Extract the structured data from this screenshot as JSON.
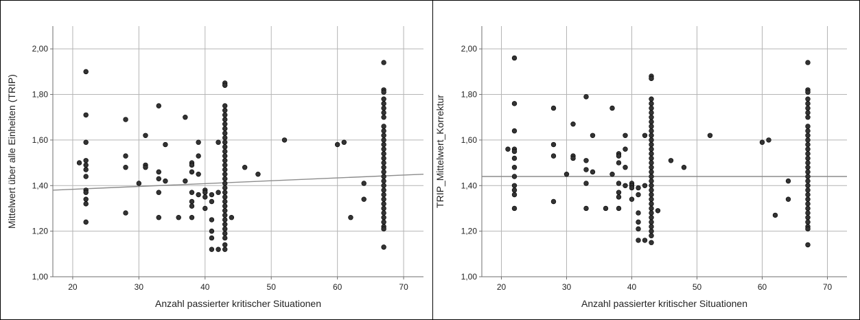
{
  "chart_data": [
    {
      "type": "scatter",
      "xlabel": "Anzahl passierter kritischer Situationen",
      "ylabel": "Mittelwert über alle Einheiten (TRIP)",
      "xlim": [
        17,
        73
      ],
      "ylim": [
        1.0,
        2.1
      ],
      "xticks": [
        "20",
        "30",
        "40",
        "50",
        "60",
        "70"
      ],
      "xtick_values": [
        20,
        30,
        40,
        50,
        60,
        70
      ],
      "yticks": [
        "1,00",
        "1,20",
        "1,40",
        "1,60",
        "1,80",
        "2,00"
      ],
      "ytick_values": [
        1.0,
        1.2,
        1.4,
        1.6,
        1.8,
        2.0
      ],
      "grid": true,
      "fit_line": [
        [
          17,
          1.38
        ],
        [
          73,
          1.45
        ]
      ],
      "points": [
        [
          21,
          1.5
        ],
        [
          22,
          1.9
        ],
        [
          22,
          1.71
        ],
        [
          22,
          1.59
        ],
        [
          22,
          1.51
        ],
        [
          22,
          1.49
        ],
        [
          22,
          1.47
        ],
        [
          22,
          1.44
        ],
        [
          22,
          1.38
        ],
        [
          22,
          1.37
        ],
        [
          22,
          1.34
        ],
        [
          22,
          1.32
        ],
        [
          22,
          1.24
        ],
        [
          28,
          1.69
        ],
        [
          28,
          1.53
        ],
        [
          28,
          1.48
        ],
        [
          28,
          1.28
        ],
        [
          30,
          1.41
        ],
        [
          31,
          1.62
        ],
        [
          31,
          1.49
        ],
        [
          31,
          1.48
        ],
        [
          33,
          1.75
        ],
        [
          33,
          1.46
        ],
        [
          33,
          1.43
        ],
        [
          33,
          1.37
        ],
        [
          33,
          1.26
        ],
        [
          34,
          1.58
        ],
        [
          34,
          1.42
        ],
        [
          36,
          1.26
        ],
        [
          37,
          1.7
        ],
        [
          37,
          1.42
        ],
        [
          38,
          1.5
        ],
        [
          38,
          1.49
        ],
        [
          38,
          1.46
        ],
        [
          38,
          1.37
        ],
        [
          38,
          1.33
        ],
        [
          38,
          1.31
        ],
        [
          38,
          1.26
        ],
        [
          39,
          1.59
        ],
        [
          39,
          1.53
        ],
        [
          39,
          1.45
        ],
        [
          39,
          1.36
        ],
        [
          40,
          1.38
        ],
        [
          40,
          1.37
        ],
        [
          40,
          1.35
        ],
        [
          40,
          1.3
        ],
        [
          41,
          1.36
        ],
        [
          41,
          1.33
        ],
        [
          41,
          1.25
        ],
        [
          41,
          1.2
        ],
        [
          41,
          1.17
        ],
        [
          41,
          1.12
        ],
        [
          42,
          1.59
        ],
        [
          42,
          1.37
        ],
        [
          42,
          1.12
        ],
        [
          43,
          1.85
        ],
        [
          43,
          1.84
        ],
        [
          43,
          1.75
        ],
        [
          43,
          1.73
        ],
        [
          43,
          1.71
        ],
        [
          43,
          1.69
        ],
        [
          43,
          1.67
        ],
        [
          43,
          1.65
        ],
        [
          43,
          1.63
        ],
        [
          43,
          1.61
        ],
        [
          43,
          1.59
        ],
        [
          43,
          1.57
        ],
        [
          43,
          1.55
        ],
        [
          43,
          1.53
        ],
        [
          43,
          1.51
        ],
        [
          43,
          1.49
        ],
        [
          43,
          1.47
        ],
        [
          43,
          1.45
        ],
        [
          43,
          1.43
        ],
        [
          43,
          1.41
        ],
        [
          43,
          1.39
        ],
        [
          43,
          1.37
        ],
        [
          43,
          1.35
        ],
        [
          43,
          1.33
        ],
        [
          43,
          1.31
        ],
        [
          43,
          1.29
        ],
        [
          43,
          1.27
        ],
        [
          43,
          1.25
        ],
        [
          43,
          1.23
        ],
        [
          43,
          1.21
        ],
        [
          43,
          1.19
        ],
        [
          43,
          1.17
        ],
        [
          43,
          1.14
        ],
        [
          43,
          1.12
        ],
        [
          44,
          1.26
        ],
        [
          46,
          1.48
        ],
        [
          48,
          1.45
        ],
        [
          52,
          1.6
        ],
        [
          60,
          1.58
        ],
        [
          61,
          1.59
        ],
        [
          62,
          1.26
        ],
        [
          64,
          1.41
        ],
        [
          64,
          1.34
        ],
        [
          67,
          1.94
        ],
        [
          67,
          1.82
        ],
        [
          67,
          1.81
        ],
        [
          67,
          1.78
        ],
        [
          67,
          1.76
        ],
        [
          67,
          1.74
        ],
        [
          67,
          1.72
        ],
        [
          67,
          1.7
        ],
        [
          67,
          1.66
        ],
        [
          67,
          1.64
        ],
        [
          67,
          1.62
        ],
        [
          67,
          1.6
        ],
        [
          67,
          1.58
        ],
        [
          67,
          1.56
        ],
        [
          67,
          1.54
        ],
        [
          67,
          1.52
        ],
        [
          67,
          1.5
        ],
        [
          67,
          1.48
        ],
        [
          67,
          1.46
        ],
        [
          67,
          1.44
        ],
        [
          67,
          1.42
        ],
        [
          67,
          1.4
        ],
        [
          67,
          1.38
        ],
        [
          67,
          1.36
        ],
        [
          67,
          1.34
        ],
        [
          67,
          1.32
        ],
        [
          67,
          1.3
        ],
        [
          67,
          1.28
        ],
        [
          67,
          1.26
        ],
        [
          67,
          1.24
        ],
        [
          67,
          1.22
        ],
        [
          67,
          1.21
        ],
        [
          67,
          1.13
        ]
      ]
    },
    {
      "type": "scatter",
      "xlabel": "Anzahl passierter kritischer Situationen",
      "ylabel": "TRIP_Mittelwert_Korrektur",
      "xlim": [
        17,
        73
      ],
      "ylim": [
        1.0,
        2.1
      ],
      "xticks": [
        "20",
        "30",
        "40",
        "50",
        "60",
        "70"
      ],
      "xtick_values": [
        20,
        30,
        40,
        50,
        60,
        70
      ],
      "yticks": [
        "1,00",
        "1,20",
        "1,40",
        "1,60",
        "1,80",
        "2,00"
      ],
      "ytick_values": [
        1.0,
        1.2,
        1.4,
        1.6,
        1.8,
        2.0
      ],
      "grid": true,
      "fit_line": [
        [
          17,
          1.44
        ],
        [
          73,
          1.44
        ]
      ],
      "points": [
        [
          21,
          1.56
        ],
        [
          22,
          1.96
        ],
        [
          22,
          1.76
        ],
        [
          22,
          1.64
        ],
        [
          22,
          1.56
        ],
        [
          22,
          1.55
        ],
        [
          22,
          1.52
        ],
        [
          22,
          1.48
        ],
        [
          22,
          1.44
        ],
        [
          22,
          1.4
        ],
        [
          22,
          1.38
        ],
        [
          22,
          1.36
        ],
        [
          22,
          1.3
        ],
        [
          28,
          1.74
        ],
        [
          28,
          1.58
        ],
        [
          28,
          1.53
        ],
        [
          28,
          1.33
        ],
        [
          30,
          1.45
        ],
        [
          31,
          1.67
        ],
        [
          31,
          1.53
        ],
        [
          31,
          1.52
        ],
        [
          33,
          1.79
        ],
        [
          33,
          1.51
        ],
        [
          33,
          1.47
        ],
        [
          33,
          1.41
        ],
        [
          33,
          1.3
        ],
        [
          34,
          1.62
        ],
        [
          34,
          1.46
        ],
        [
          36,
          1.3
        ],
        [
          37,
          1.74
        ],
        [
          37,
          1.45
        ],
        [
          38,
          1.54
        ],
        [
          38,
          1.53
        ],
        [
          38,
          1.5
        ],
        [
          38,
          1.41
        ],
        [
          38,
          1.37
        ],
        [
          38,
          1.35
        ],
        [
          38,
          1.3
        ],
        [
          39,
          1.62
        ],
        [
          39,
          1.56
        ],
        [
          39,
          1.48
        ],
        [
          39,
          1.4
        ],
        [
          40,
          1.41
        ],
        [
          40,
          1.4
        ],
        [
          40,
          1.39
        ],
        [
          40,
          1.34
        ],
        [
          41,
          1.39
        ],
        [
          41,
          1.36
        ],
        [
          41,
          1.28
        ],
        [
          41,
          1.24
        ],
        [
          41,
          1.21
        ],
        [
          41,
          1.16
        ],
        [
          42,
          1.62
        ],
        [
          42,
          1.4
        ],
        [
          42,
          1.16
        ],
        [
          43,
          1.88
        ],
        [
          43,
          1.87
        ],
        [
          43,
          1.78
        ],
        [
          43,
          1.76
        ],
        [
          43,
          1.74
        ],
        [
          43,
          1.72
        ],
        [
          43,
          1.7
        ],
        [
          43,
          1.68
        ],
        [
          43,
          1.66
        ],
        [
          43,
          1.64
        ],
        [
          43,
          1.62
        ],
        [
          43,
          1.6
        ],
        [
          43,
          1.58
        ],
        [
          43,
          1.56
        ],
        [
          43,
          1.54
        ],
        [
          43,
          1.52
        ],
        [
          43,
          1.5
        ],
        [
          43,
          1.48
        ],
        [
          43,
          1.46
        ],
        [
          43,
          1.44
        ],
        [
          43,
          1.42
        ],
        [
          43,
          1.4
        ],
        [
          43,
          1.38
        ],
        [
          43,
          1.36
        ],
        [
          43,
          1.34
        ],
        [
          43,
          1.32
        ],
        [
          43,
          1.3
        ],
        [
          43,
          1.28
        ],
        [
          43,
          1.26
        ],
        [
          43,
          1.24
        ],
        [
          43,
          1.22
        ],
        [
          43,
          1.2
        ],
        [
          43,
          1.18
        ],
        [
          43,
          1.15
        ],
        [
          44,
          1.29
        ],
        [
          46,
          1.51
        ],
        [
          48,
          1.48
        ],
        [
          52,
          1.62
        ],
        [
          60,
          1.59
        ],
        [
          61,
          1.6
        ],
        [
          62,
          1.27
        ],
        [
          64,
          1.42
        ],
        [
          64,
          1.34
        ],
        [
          67,
          1.94
        ],
        [
          67,
          1.82
        ],
        [
          67,
          1.81
        ],
        [
          67,
          1.78
        ],
        [
          67,
          1.76
        ],
        [
          67,
          1.74
        ],
        [
          67,
          1.72
        ],
        [
          67,
          1.7
        ],
        [
          67,
          1.66
        ],
        [
          67,
          1.64
        ],
        [
          67,
          1.62
        ],
        [
          67,
          1.6
        ],
        [
          67,
          1.58
        ],
        [
          67,
          1.56
        ],
        [
          67,
          1.54
        ],
        [
          67,
          1.52
        ],
        [
          67,
          1.5
        ],
        [
          67,
          1.48
        ],
        [
          67,
          1.46
        ],
        [
          67,
          1.44
        ],
        [
          67,
          1.42
        ],
        [
          67,
          1.4
        ],
        [
          67,
          1.38
        ],
        [
          67,
          1.36
        ],
        [
          67,
          1.34
        ],
        [
          67,
          1.32
        ],
        [
          67,
          1.3
        ],
        [
          67,
          1.28
        ],
        [
          67,
          1.26
        ],
        [
          67,
          1.24
        ],
        [
          67,
          1.22
        ],
        [
          67,
          1.21
        ],
        [
          67,
          1.14
        ]
      ]
    }
  ],
  "colors": {
    "background": "#ffffff",
    "frame": "#000000",
    "gridline": "#b4b4b4",
    "axis": "#6e6e6e",
    "point_fill": "#333333",
    "point_stroke": "#000000",
    "fit_line": "#8c8c8c"
  }
}
